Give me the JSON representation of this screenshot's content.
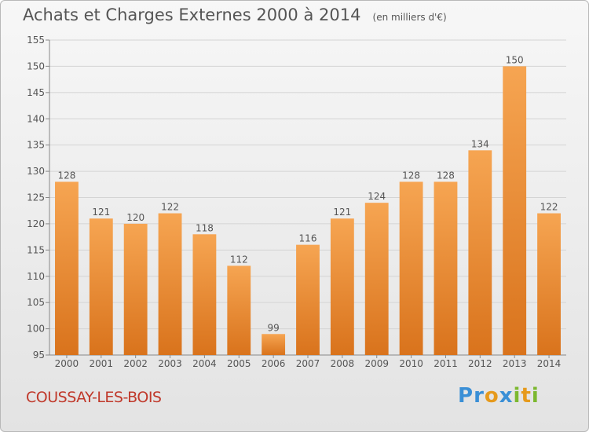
{
  "title": "Achats et Charges Externes 2000 à 2014",
  "subtitle": "(en milliers d'€)",
  "commune": "COUSSAY-LES-BOIS",
  "logo": {
    "text": "Proxiti",
    "letters": [
      "P",
      "r",
      "o",
      "x",
      "i",
      "t",
      "i"
    ],
    "colors": [
      "#3a8fd6",
      "#3a8fd6",
      "#e69a1c",
      "#3a8fd6",
      "#7cb82f",
      "#e69a1c",
      "#7cb82f"
    ]
  },
  "colors": {
    "bar_top": "#f6a552",
    "bar_bottom": "#d9731c",
    "commune": "#c0392b",
    "text": "#555555"
  },
  "chart_data": {
    "type": "bar",
    "categories": [
      "2000",
      "2001",
      "2002",
      "2003",
      "2004",
      "2005",
      "2006",
      "2007",
      "2008",
      "2009",
      "2010",
      "2011",
      "2012",
      "2013",
      "2014"
    ],
    "values": [
      128,
      121,
      120,
      122,
      118,
      112,
      99,
      116,
      121,
      124,
      128,
      128,
      134,
      150,
      122
    ],
    "ylim": [
      95,
      155
    ],
    "yticks": [
      95,
      100,
      105,
      110,
      115,
      120,
      125,
      130,
      135,
      140,
      145,
      150,
      155
    ],
    "grid": true,
    "data_labels": true
  }
}
